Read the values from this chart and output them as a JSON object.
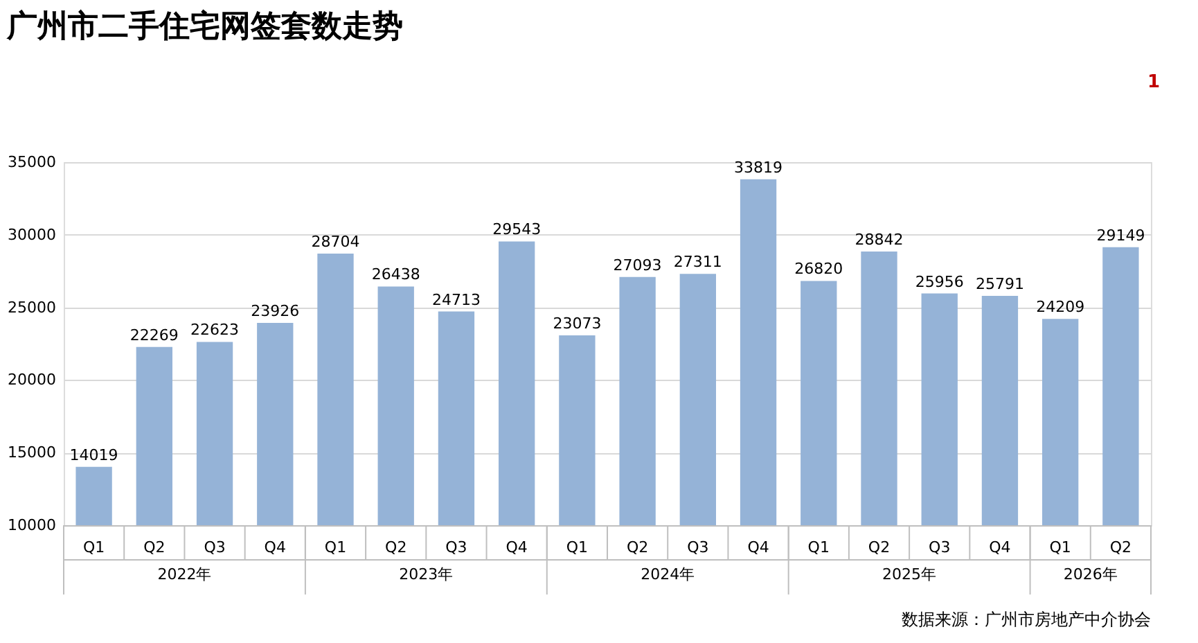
{
  "chart_data": {
    "type": "bar",
    "title": "广州市二手住宅网签套数走势",
    "categories": [
      "Q1",
      "Q2",
      "Q3",
      "Q4",
      "Q1",
      "Q2",
      "Q3",
      "Q4",
      "Q1",
      "Q2",
      "Q3",
      "Q4",
      "Q1",
      "Q2",
      "Q3",
      "Q4",
      "Q1",
      "Q2"
    ],
    "values": [
      14019,
      22269,
      22623,
      23926,
      28704,
      26438,
      24713,
      29543,
      23073,
      27093,
      27311,
      33819,
      26820,
      28842,
      25956,
      25791,
      24209,
      29149
    ],
    "color": "#95b3d7",
    "ylim": [
      10000,
      35000
    ],
    "yticks": [
      10000,
      15000,
      20000,
      25000,
      30000,
      35000
    ],
    "grid": "y",
    "data_labels": true,
    "annotations": [
      "2022年",
      "2023年",
      "2024年",
      "2025年",
      "2026年",
      "数据来源：广州市房地产中介协会",
      "1"
    ]
  }
}
